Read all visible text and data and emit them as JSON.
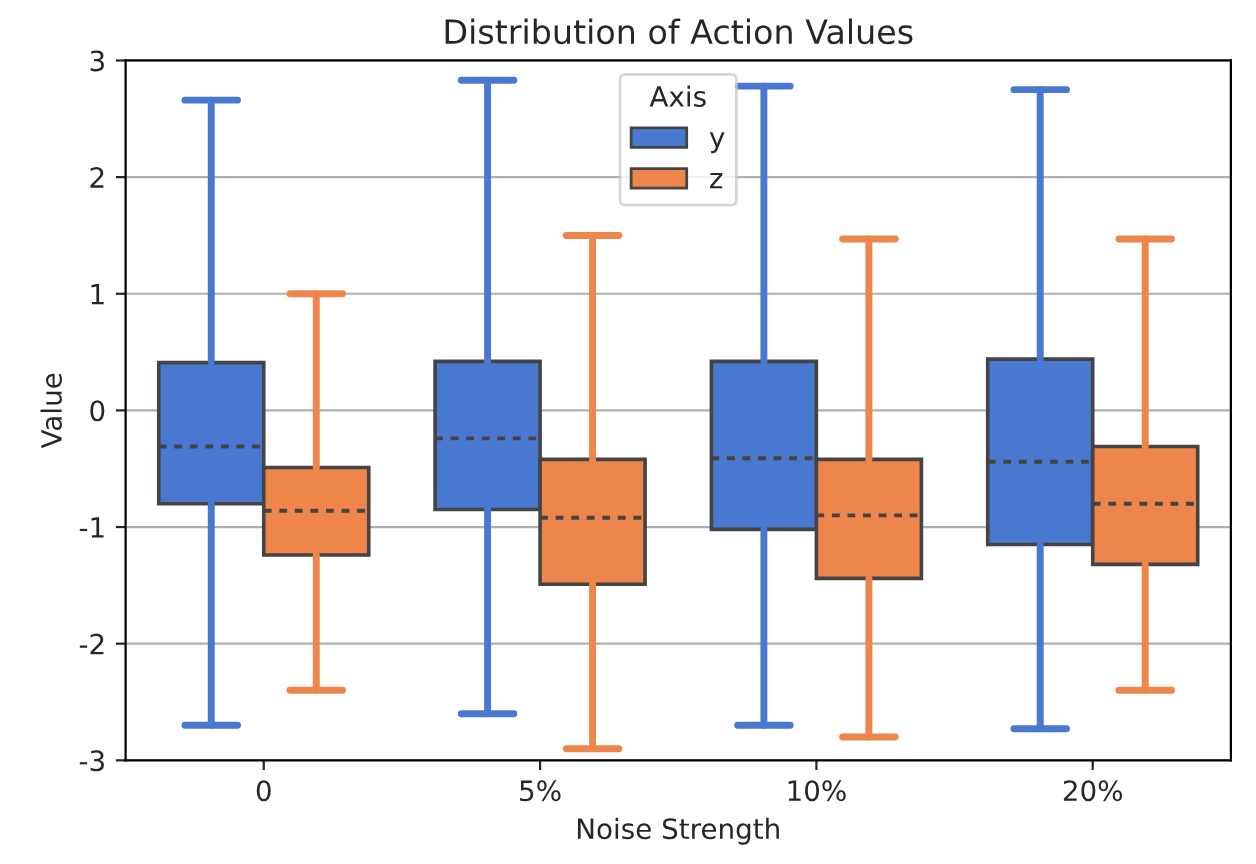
{
  "chart_data": {
    "type": "box",
    "title": "Distribution of Action Values",
    "xlabel": "Noise Strength",
    "ylabel": "Value",
    "legend_title": "Axis",
    "categories": [
      "0",
      "5%",
      "10%",
      "20%"
    ],
    "series": [
      {
        "name": "y",
        "color": "#4878d0",
        "boxes": [
          {
            "low": -2.7,
            "q1": -0.8,
            "median": -0.31,
            "q3": 0.41,
            "high": 2.66
          },
          {
            "low": -2.6,
            "q1": -0.85,
            "median": -0.24,
            "q3": 0.42,
            "high": 2.83
          },
          {
            "low": -2.7,
            "q1": -1.02,
            "median": -0.41,
            "q3": 0.42,
            "high": 2.78
          },
          {
            "low": -2.73,
            "q1": -1.15,
            "median": -0.44,
            "q3": 0.44,
            "high": 2.75
          }
        ]
      },
      {
        "name": "z",
        "color": "#ee854a",
        "boxes": [
          {
            "low": -2.4,
            "q1": -1.24,
            "median": -0.86,
            "q3": -0.49,
            "high": 1.0
          },
          {
            "low": -2.9,
            "q1": -1.49,
            "median": -0.92,
            "q3": -0.42,
            "high": 1.5
          },
          {
            "low": -2.8,
            "q1": -1.44,
            "median": -0.9,
            "q3": -0.42,
            "high": 1.47
          },
          {
            "low": -2.4,
            "q1": -1.32,
            "median": -0.8,
            "q3": -0.31,
            "high": 1.47
          }
        ]
      }
    ],
    "ylim": [
      -3,
      3
    ],
    "yticks": [
      -3,
      -2,
      -1,
      0,
      1,
      2,
      3
    ],
    "grid": "y",
    "legend": "top"
  }
}
